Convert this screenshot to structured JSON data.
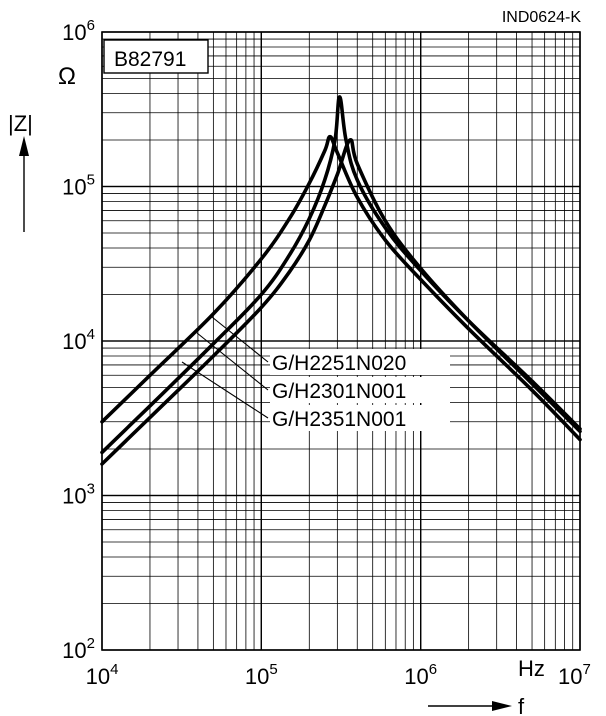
{
  "chart_data": {
    "type": "line",
    "doc_id": "IND0624-K",
    "part_number": "B82791",
    "ylabel": "|Z|",
    "yunit": "Ω",
    "xlabel": "f",
    "xunit": "Hz",
    "xscale": "log",
    "yscale": "log",
    "xlim": [
      10000,
      10000000
    ],
    "ylim": [
      100,
      1000000
    ],
    "x_ticks": [
      {
        "base": "10",
        "exp": "4"
      },
      {
        "base": "10",
        "exp": "5"
      },
      {
        "base": "10",
        "exp": "6"
      },
      {
        "base": "10",
        "exp": "7"
      }
    ],
    "y_ticks": [
      {
        "base": "10",
        "exp": "2"
      },
      {
        "base": "10",
        "exp": "3"
      },
      {
        "base": "10",
        "exp": "4"
      },
      {
        "base": "10",
        "exp": "5"
      },
      {
        "base": "10",
        "exp": "6"
      }
    ],
    "grid": true,
    "series": [
      {
        "name": "G/H2251N020",
        "points": [
          [
            10000,
            3000
          ],
          [
            20000,
            6000
          ],
          [
            50000,
            15000
          ],
          [
            100000,
            34000
          ],
          [
            150000,
            62000
          ],
          [
            200000,
            105000
          ],
          [
            250000,
            170000
          ],
          [
            270000,
            210000
          ],
          [
            300000,
            165000
          ],
          [
            400000,
            85000
          ],
          [
            600000,
            45000
          ],
          [
            1000000,
            25000
          ],
          [
            2000000,
            12000
          ],
          [
            5000000,
            4800
          ],
          [
            10000000,
            2300
          ]
        ]
      },
      {
        "name": "G/H2301N001",
        "points": [
          [
            10000,
            1900
          ],
          [
            20000,
            3800
          ],
          [
            50000,
            9600
          ],
          [
            100000,
            20000
          ],
          [
            150000,
            36000
          ],
          [
            200000,
            62000
          ],
          [
            250000,
            110000
          ],
          [
            290000,
            200000
          ],
          [
            310000,
            380000
          ],
          [
            340000,
            200000
          ],
          [
            400000,
            110000
          ],
          [
            600000,
            54000
          ],
          [
            1000000,
            28500
          ],
          [
            2000000,
            13500
          ],
          [
            5000000,
            5500
          ],
          [
            10000000,
            2700
          ]
        ]
      },
      {
        "name": "G/H2351N001",
        "points": [
          [
            10000,
            1600
          ],
          [
            20000,
            3200
          ],
          [
            50000,
            8000
          ],
          [
            100000,
            16500
          ],
          [
            150000,
            28000
          ],
          [
            200000,
            45000
          ],
          [
            250000,
            75000
          ],
          [
            300000,
            120000
          ],
          [
            360000,
            200000
          ],
          [
            400000,
            140000
          ],
          [
            600000,
            60000
          ],
          [
            1000000,
            29500
          ],
          [
            2000000,
            13500
          ],
          [
            5000000,
            5300
          ],
          [
            10000000,
            2600
          ]
        ]
      }
    ]
  }
}
